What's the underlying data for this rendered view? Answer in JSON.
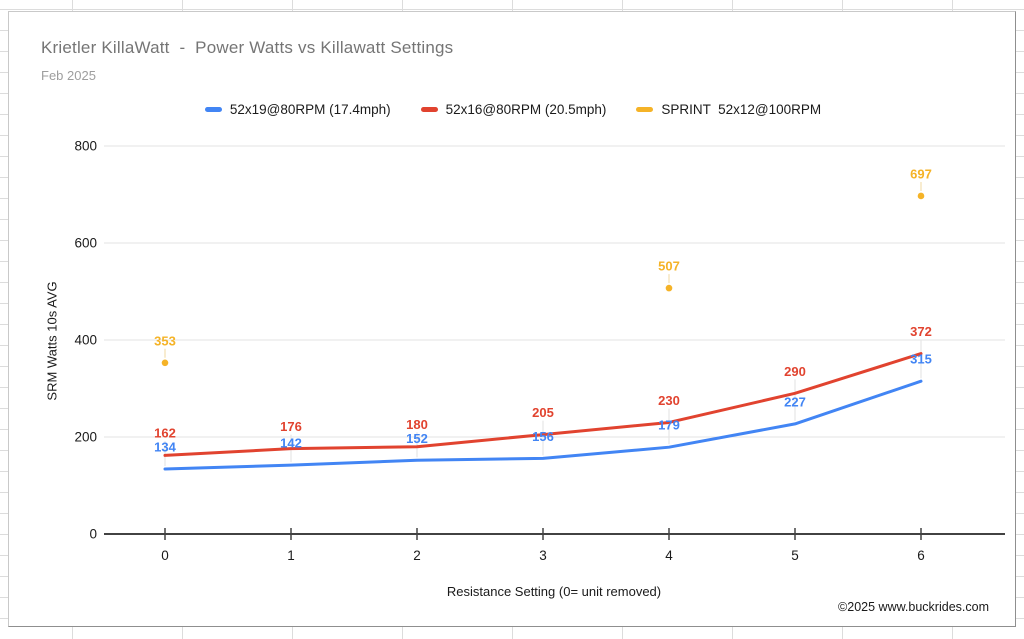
{
  "chart_data": {
    "type": "line",
    "title": "Krietler KillaWatt  -  Power Watts vs Killawatt Settings",
    "subtitle": "Feb 2025",
    "xlabel": "Resistance Setting (0= unit removed)",
    "ylabel": "SRM Watts 10s AVG",
    "x": [
      0,
      1,
      2,
      3,
      4,
      5,
      6
    ],
    "yticks": [
      0,
      200,
      400,
      600,
      800
    ],
    "ylim": [
      0,
      800
    ],
    "grid": "horizontal",
    "legend_position": "top",
    "series": [
      {
        "name": "52x19@80RPM (17.4mph)",
        "color": "#4285f4",
        "style": "line",
        "values": [
          134,
          142,
          152,
          156,
          179,
          227,
          315
        ]
      },
      {
        "name": "52x16@80RPM (20.5mph)",
        "color": "#e1432f",
        "style": "line",
        "values": [
          162,
          176,
          180,
          205,
          230,
          290,
          372
        ]
      },
      {
        "name": "SPRINT  52x12@100RPM",
        "color": "#f5b327",
        "style": "points",
        "points": [
          {
            "x": 0,
            "y": 353
          },
          {
            "x": 4,
            "y": 507
          },
          {
            "x": 6,
            "y": 697
          }
        ]
      }
    ]
  },
  "footer": {
    "copyright": "©2025 www.buckrides.com"
  },
  "colors": {
    "gridline": "#e3e3e3",
    "axis": "#424242",
    "tick_label": "#1a1a1a",
    "title_gray": "#757575",
    "subtitle_gray": "#9e9e9e"
  }
}
